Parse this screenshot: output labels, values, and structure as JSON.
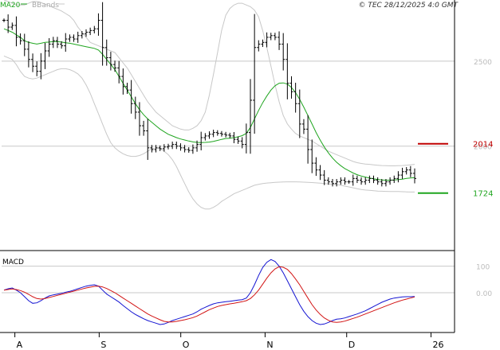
{
  "header": {
    "ma_label": "MA20",
    "bb_label": "BBands",
    "copyright": "© TEC 28/12/2025 4:0 GMT"
  },
  "colors": {
    "price": "#000000",
    "ma": "#1fa51f",
    "bands": "#c8c8c8",
    "resistance": "#c00000",
    "support": "#1fa51f",
    "macd": "#1414d2",
    "signal": "#d21414",
    "grid": "#c8c8c8"
  },
  "chart_data": [
    {
      "type": "ohlc",
      "panel": "price",
      "ylim": [
        1400,
        2850
      ],
      "y_ticks": [
        2000,
        2500
      ],
      "y_tick_labels": [
        "2000",
        "2500"
      ],
      "x_ticks": [
        "A",
        "S",
        "O",
        "N",
        "D",
        "26"
      ],
      "x_tick_dates": [
        "2025-08-01",
        "2025-09-01",
        "2025-10-01",
        "2025-11-01",
        "2025-12-01",
        "2026-01-01"
      ],
      "date_range": [
        "2025-07-28",
        "2025-12-26"
      ],
      "levels": [
        {
          "label": "2014",
          "value": 2014,
          "role": "resistance"
        },
        {
          "label": "1724",
          "value": 1724,
          "role": "support"
        }
      ],
      "close": [
        2740,
        2700,
        2710,
        2640,
        2620,
        2570,
        2510,
        2470,
        2440,
        2500,
        2560,
        2600,
        2620,
        2600,
        2590,
        2630,
        2640,
        2630,
        2650,
        2660,
        2670,
        2680,
        2690,
        2740,
        2580,
        2520,
        2480,
        2460,
        2410,
        2350,
        2330,
        2250,
        2200,
        2120,
        2090,
        1990,
        1980,
        1990,
        1985,
        1995,
        2000,
        2010,
        2000,
        1990,
        1980,
        1975,
        1990,
        2010,
        2050,
        2060,
        2070,
        2080,
        2075,
        2070,
        2065,
        2060,
        2040,
        2030,
        2010,
        2080,
        2270,
        2580,
        2600,
        2610,
        2640,
        2650,
        2640,
        2600,
        2510,
        2370,
        2320,
        2250,
        2130,
        2100,
        1980,
        1900,
        1860,
        1830,
        1800,
        1790,
        1780,
        1790,
        1800,
        1790,
        1790,
        1810,
        1800,
        1790,
        1800,
        1810,
        1800,
        1790,
        1780,
        1790,
        1800,
        1810,
        1830,
        1850,
        1860,
        1840,
        1810
      ],
      "ma20": [
        2690,
        2680,
        2670,
        2655,
        2640,
        2620,
        2610,
        2605,
        2600,
        2605,
        2610,
        2612,
        2615,
        2615,
        2612,
        2608,
        2605,
        2600,
        2595,
        2590,
        2585,
        2580,
        2575,
        2565,
        2540,
        2510,
        2480,
        2450,
        2410,
        2370,
        2330,
        2290,
        2250,
        2215,
        2185,
        2160,
        2140,
        2120,
        2100,
        2085,
        2070,
        2060,
        2050,
        2042,
        2036,
        2030,
        2025,
        2022,
        2021,
        2022,
        2024,
        2028,
        2034,
        2040,
        2045,
        2047,
        2050,
        2055,
        2062,
        2075,
        2110,
        2160,
        2210,
        2255,
        2295,
        2330,
        2355,
        2370,
        2372,
        2365,
        2345,
        2315,
        2275,
        2230,
        2180,
        2130,
        2080,
        2035,
        1995,
        1960,
        1930,
        1905,
        1885,
        1868,
        1855,
        1842,
        1832,
        1824,
        1818,
        1812,
        1808,
        1804,
        1801,
        1800,
        1800,
        1801,
        1803,
        1806,
        1810,
        1813,
        1815
      ],
      "bb_upper": [
        2860,
        2850,
        2840,
        2830,
        2830,
        2830,
        2840,
        2850,
        2850,
        2845,
        2835,
        2825,
        2815,
        2805,
        2795,
        2780,
        2765,
        2740,
        2700,
        2670,
        2640,
        2610,
        2600,
        2590,
        2580,
        2570,
        2560,
        2550,
        2520,
        2490,
        2460,
        2420,
        2380,
        2340,
        2300,
        2260,
        2230,
        2200,
        2180,
        2160,
        2140,
        2120,
        2110,
        2100,
        2095,
        2095,
        2105,
        2120,
        2150,
        2200,
        2300,
        2420,
        2550,
        2680,
        2770,
        2810,
        2830,
        2840,
        2840,
        2830,
        2820,
        2800,
        2760,
        2680,
        2580,
        2470,
        2360,
        2260,
        2180,
        2130,
        2100,
        2075,
        2060,
        2050,
        2040,
        2030,
        2015,
        2000,
        1985,
        1970,
        1960,
        1950,
        1940,
        1930,
        1920,
        1910,
        1903,
        1898,
        1895,
        1893,
        1890,
        1888,
        1886,
        1885,
        1884,
        1884,
        1885,
        1886,
        1888,
        1890,
        1893
      ],
      "bb_lower": [
        2530,
        2520,
        2510,
        2480,
        2440,
        2410,
        2400,
        2395,
        2400,
        2410,
        2420,
        2430,
        2440,
        2450,
        2455,
        2455,
        2450,
        2440,
        2425,
        2400,
        2360,
        2310,
        2250,
        2190,
        2130,
        2070,
        2020,
        1990,
        1970,
        1955,
        1945,
        1940,
        1940,
        1945,
        1955,
        1970,
        1985,
        1990,
        1985,
        1970,
        1950,
        1920,
        1880,
        1830,
        1780,
        1730,
        1690,
        1660,
        1640,
        1630,
        1630,
        1640,
        1655,
        1675,
        1690,
        1705,
        1720,
        1730,
        1740,
        1750,
        1760,
        1770,
        1775,
        1780,
        1783,
        1785,
        1787,
        1788,
        1789,
        1790,
        1790,
        1790,
        1789,
        1788,
        1787,
        1786,
        1784,
        1782,
        1780,
        1778,
        1776,
        1774,
        1770,
        1765,
        1760,
        1755,
        1750,
        1745,
        1742,
        1740,
        1738,
        1736,
        1735,
        1734,
        1733,
        1733,
        1733,
        1732,
        1731,
        1730,
        1730
      ]
    },
    {
      "type": "line",
      "panel": "macd",
      "title": "MACD",
      "ylim": [
        -150,
        150
      ],
      "y_ticks": [
        0,
        100
      ],
      "y_tick_labels": [
        "0.00",
        "100"
      ],
      "series": [
        {
          "name": "MACD",
          "role": "macd",
          "values": [
            10,
            15,
            18,
            10,
            0,
            -15,
            -30,
            -40,
            -38,
            -30,
            -20,
            -12,
            -8,
            -5,
            -2,
            2,
            5,
            10,
            15,
            20,
            25,
            28,
            30,
            25,
            10,
            -5,
            -15,
            -25,
            -35,
            -48,
            -60,
            -72,
            -82,
            -90,
            -98,
            -105,
            -110,
            -115,
            -120,
            -118,
            -112,
            -105,
            -100,
            -95,
            -90,
            -85,
            -80,
            -72,
            -62,
            -55,
            -48,
            -42,
            -38,
            -36,
            -34,
            -32,
            -30,
            -28,
            -26,
            -20,
            0,
            30,
            65,
            95,
            115,
            125,
            118,
            100,
            75,
            45,
            15,
            -15,
            -45,
            -70,
            -90,
            -105,
            -115,
            -120,
            -118,
            -112,
            -105,
            -100,
            -98,
            -95,
            -90,
            -85,
            -80,
            -74,
            -68,
            -60,
            -52,
            -44,
            -36,
            -30,
            -24,
            -20,
            -18,
            -16,
            -15,
            -15,
            -14
          ]
        },
        {
          "name": "Signal",
          "role": "signal",
          "values": [
            10,
            12,
            14,
            12,
            8,
            2,
            -6,
            -15,
            -22,
            -24,
            -22,
            -18,
            -14,
            -10,
            -6,
            -2,
            2,
            6,
            10,
            14,
            18,
            21,
            24,
            25,
            22,
            16,
            8,
            0,
            -10,
            -20,
            -30,
            -40,
            -50,
            -60,
            -70,
            -80,
            -88,
            -95,
            -102,
            -108,
            -110,
            -110,
            -108,
            -105,
            -102,
            -98,
            -94,
            -88,
            -80,
            -72,
            -64,
            -58,
            -52,
            -48,
            -45,
            -42,
            -40,
            -37,
            -34,
            -30,
            -22,
            -8,
            10,
            32,
            55,
            75,
            90,
            98,
            96,
            88,
            72,
            52,
            30,
            5,
            -20,
            -45,
            -65,
            -82,
            -95,
            -104,
            -110,
            -112,
            -110,
            -107,
            -102,
            -97,
            -92,
            -86,
            -80,
            -74,
            -68,
            -62,
            -56,
            -50,
            -44,
            -38,
            -33,
            -28,
            -24,
            -20,
            -16
          ]
        }
      ]
    }
  ]
}
